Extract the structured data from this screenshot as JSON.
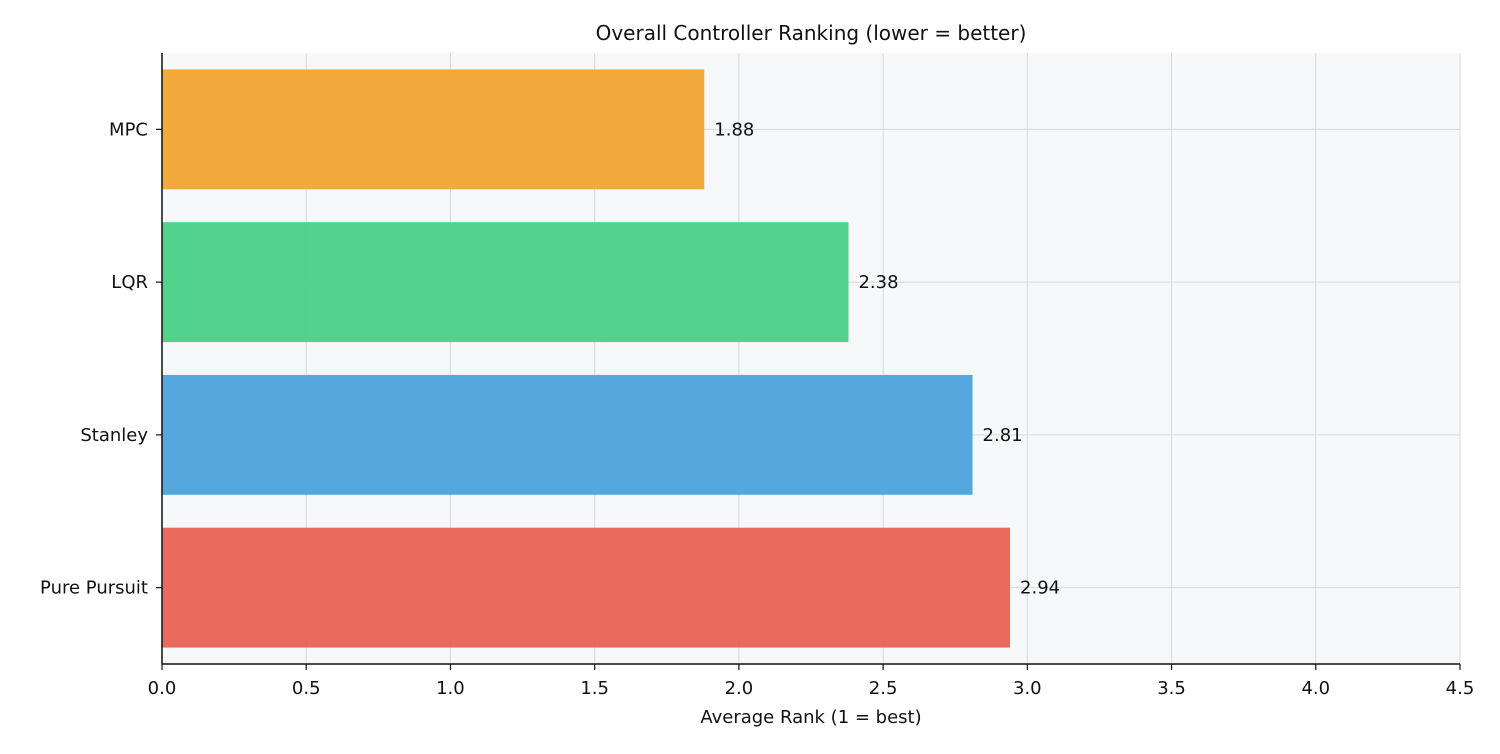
{
  "chart_data": {
    "type": "bar",
    "orientation": "horizontal",
    "title": "Overall Controller Ranking  (lower = better)",
    "xlabel": "Average Rank (1 = best)",
    "ylabel": "",
    "categories": [
      "MPC",
      "LQR",
      "Stanley",
      "Pure Pursuit"
    ],
    "values": [
      1.88,
      2.38,
      2.81,
      2.94
    ],
    "value_labels": [
      "1.88",
      "2.38",
      "2.81",
      "2.94"
    ],
    "colors": [
      "#f2a531",
      "#48d185",
      "#4ca3dc",
      "#e96354"
    ],
    "xlim": [
      0.0,
      4.5
    ],
    "xticks": [
      {
        "value": 0.0,
        "label": "0.0"
      },
      {
        "value": 0.5,
        "label": "0.5"
      },
      {
        "value": 1.0,
        "label": "1.0"
      },
      {
        "value": 1.5,
        "label": "1.5"
      },
      {
        "value": 2.0,
        "label": "2.0"
      },
      {
        "value": 2.5,
        "label": "2.5"
      },
      {
        "value": 3.0,
        "label": "3.0"
      },
      {
        "value": 3.5,
        "label": "3.5"
      },
      {
        "value": 4.0,
        "label": "4.0"
      },
      {
        "value": 4.5,
        "label": "4.5"
      }
    ],
    "grid": true,
    "legend": "none",
    "plot_background": "#f7f8fa",
    "grid_color": "#d6d8dc",
    "axis_color": "#111111"
  }
}
